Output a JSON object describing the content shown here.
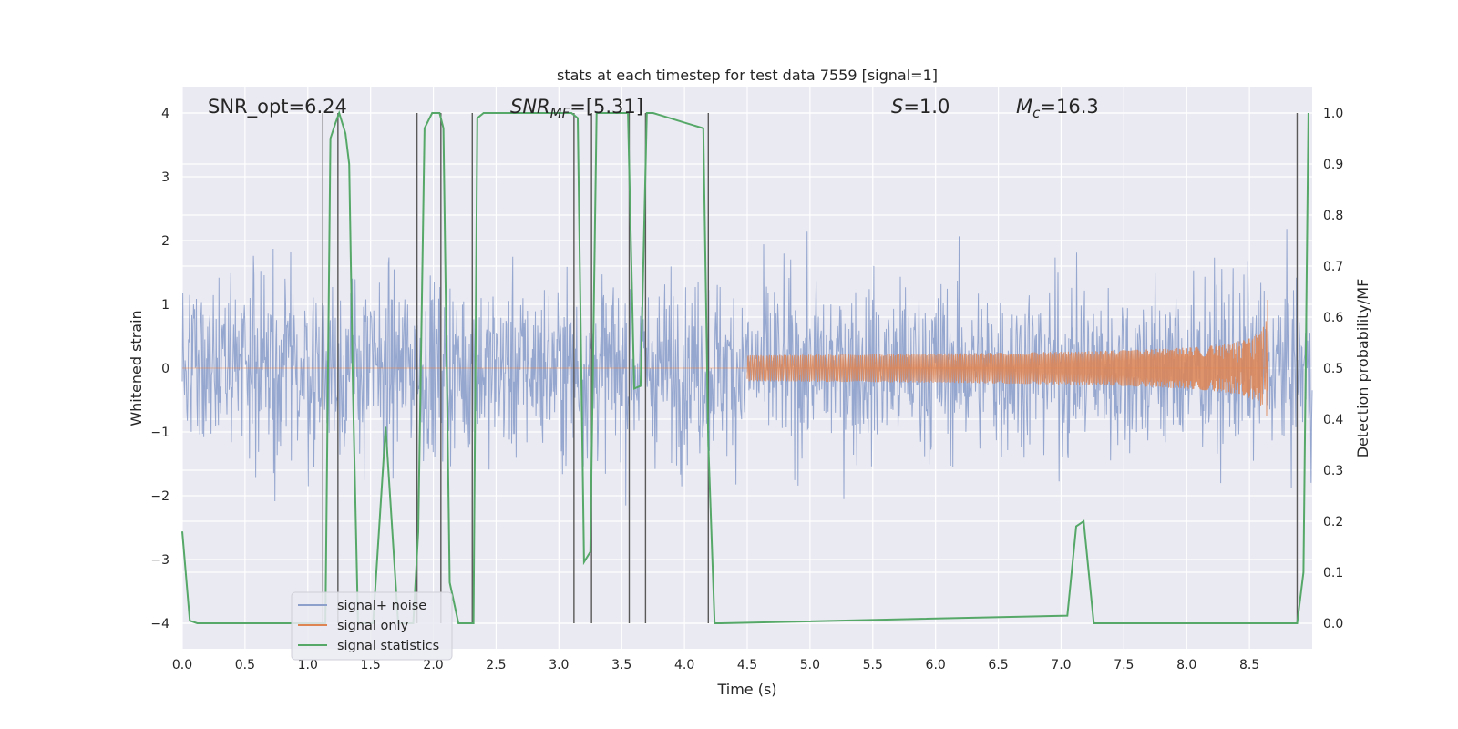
{
  "chart_data": {
    "type": "line",
    "title": "stats at each timestep for test data 7559 [signal=1]",
    "xlabel": "Time (s)",
    "ylabel_left": "Whitened strain",
    "ylabel_right": "Detection probability/MF",
    "xlim": [
      0.0,
      9.0
    ],
    "ylim_left": [
      -4.4,
      4.4
    ],
    "ylim_right": [
      -0.05,
      1.05
    ],
    "x_ticks": [
      "0.0",
      "0.5",
      "1.0",
      "1.5",
      "2.0",
      "2.5",
      "3.0",
      "3.5",
      "4.0",
      "4.5",
      "5.0",
      "5.5",
      "6.0",
      "6.5",
      "7.0",
      "7.5",
      "8.0",
      "8.5"
    ],
    "y_ticks_left": [
      "4",
      "3",
      "2",
      "1",
      "0",
      "−1",
      "−2",
      "−3",
      "−4"
    ],
    "y_ticks_right": [
      "1.0",
      "0.9",
      "0.8",
      "0.7",
      "0.6",
      "0.5",
      "0.4",
      "0.3",
      "0.2",
      "0.1",
      "0.0"
    ],
    "grid": true,
    "legend": {
      "placement": "lower-left",
      "entries": [
        {
          "label": "signal+ noise",
          "color": "#8da0cb"
        },
        {
          "label": "signal only",
          "color": "#dd8452"
        },
        {
          "label": "signal statistics",
          "color": "#55a868"
        }
      ]
    },
    "annotations": {
      "snr_opt": "SNR_opt=6.24",
      "snr_mf_sym": "SNR",
      "snr_mf_sub": "MF",
      "snr_mf_val": "=[5.31]",
      "s_sym": "S",
      "s_val": "=1.0",
      "mc_sym": "M",
      "mc_sub": "c",
      "mc_val": "=16.3"
    },
    "series": [
      {
        "name": "signal+ noise",
        "style": "noise",
        "std": 0.8,
        "x_range": [
          0.0,
          9.0
        ]
      },
      {
        "name": "signal only",
        "style": "chirp",
        "merger_time": 8.65,
        "peak_amplitude": 1.25
      },
      {
        "name": "signal statistics",
        "x": [
          0.0,
          0.06,
          0.12,
          1.1,
          1.14,
          1.18,
          1.22,
          1.25,
          1.3,
          1.33,
          1.36,
          1.4,
          1.52,
          1.62,
          1.72,
          1.84,
          1.88,
          1.93,
          1.99,
          2.05,
          2.08,
          2.13,
          2.2,
          2.26,
          2.32,
          2.35,
          2.4,
          3.1,
          3.15,
          3.2,
          3.25,
          3.3,
          3.34,
          3.55,
          3.6,
          3.65,
          3.7,
          3.75,
          4.15,
          4.19,
          4.24,
          4.29,
          7.05,
          7.12,
          7.18,
          7.26,
          7.32,
          8.8,
          8.88,
          8.93,
          8.97
        ],
        "values": [
          0.18,
          0.005,
          0.0,
          0.0,
          0.0,
          0.95,
          0.98,
          1.0,
          0.96,
          0.9,
          0.45,
          0.0,
          0.0,
          0.385,
          0.0,
          0.0,
          0.18,
          0.97,
          1.0,
          1.0,
          0.97,
          0.08,
          0.0,
          0.0,
          0.0,
          0.99,
          1.0,
          1.0,
          0.99,
          0.12,
          0.14,
          1.0,
          1.0,
          1.0,
          0.46,
          0.465,
          1.0,
          1.0,
          0.97,
          0.35,
          0.0,
          0.0,
          0.015,
          0.19,
          0.2,
          0.0,
          0.0,
          0.0,
          0.0,
          0.1,
          1.0
        ]
      }
    ],
    "vertical_markers": [
      {
        "x": 1.12,
        "y_from": 0.0,
        "y_to": 1.0
      },
      {
        "x": 1.24,
        "y_from": 0.0,
        "y_to": 1.0
      },
      {
        "x": 1.87,
        "y_from": 0.0,
        "y_to": 1.0
      },
      {
        "x": 2.06,
        "y_from": 0.0,
        "y_to": 1.0
      },
      {
        "x": 2.31,
        "y_from": 0.0,
        "y_to": 1.0
      },
      {
        "x": 3.12,
        "y_from": 0.0,
        "y_to": 1.0
      },
      {
        "x": 3.26,
        "y_from": 0.0,
        "y_to": 1.0
      },
      {
        "x": 3.56,
        "y_from": 0.0,
        "y_to": 1.0
      },
      {
        "x": 3.69,
        "y_from": 0.0,
        "y_to": 1.0
      },
      {
        "x": 4.19,
        "y_from": 0.0,
        "y_to": 1.0
      },
      {
        "x": 8.88,
        "y_from": 0.0,
        "y_to": 1.0
      }
    ],
    "colors": {
      "background": "#eaeaf2",
      "grid": "#ffffff",
      "noise": "#8da0cb",
      "signal": "#dd8452",
      "stats": "#55a868",
      "markers": "#595959"
    }
  }
}
